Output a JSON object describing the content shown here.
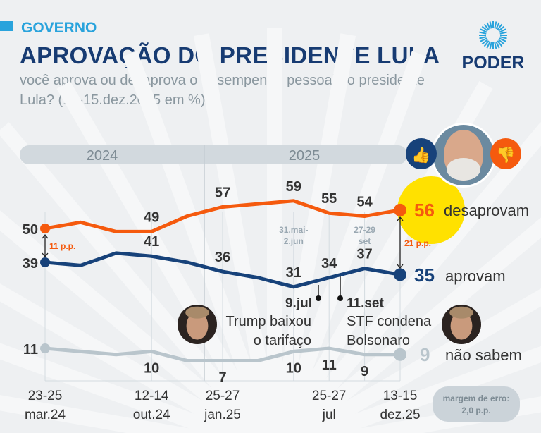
{
  "header": {
    "kicker": "GOVERNO",
    "title": "APROVAÇÃO DO PRESIDENTE LULA",
    "subtitle": "você aprova ou desaprova o desempenho pessoal do presidente Lula? (13-15.dez.2025 em %)",
    "logo": "PODER"
  },
  "colors": {
    "desaprova": "#f55a0e",
    "aprova": "#17427a",
    "nao_sabem": "#b9c5cc",
    "highlight": "#ffe100",
    "accent": "#29a3dc"
  },
  "chart_data": {
    "type": "line",
    "title": "APROVAÇÃO DO PRESIDENTE LULA",
    "years": [
      "2024",
      "2025"
    ],
    "x_tick_labels": [
      {
        "index": 0,
        "line1": "23-25",
        "line2": "mar.24"
      },
      {
        "index": 3,
        "line1": "12-14",
        "line2": "out.24"
      },
      {
        "index": 5,
        "line1": "25-27",
        "line2": "jan.25"
      },
      {
        "index": 8,
        "line1": "25-27",
        "line2": "jul"
      },
      {
        "index": 10,
        "line1": "13-15",
        "line2": "dez.25"
      }
    ],
    "period_notes": [
      {
        "index": 7,
        "line1": "31.mai-",
        "line2": "2.jun"
      },
      {
        "index": 9,
        "line1": "27-29",
        "line2": "set"
      }
    ],
    "series": [
      {
        "key": "desaprova",
        "name": "desaprovam",
        "final": "56",
        "values": [
          50,
          52,
          49,
          49,
          54,
          57,
          58,
          59,
          55,
          54,
          56
        ],
        "labels": [
          "50",
          null,
          null,
          "49",
          null,
          "57",
          null,
          "59",
          "55",
          "54",
          null
        ]
      },
      {
        "key": "aprova",
        "name": "aprovam",
        "final": "35",
        "values": [
          39,
          38,
          42,
          41,
          39,
          36,
          34,
          31,
          34,
          37,
          35
        ],
        "labels": [
          "39",
          null,
          null,
          "41",
          null,
          "36",
          null,
          "31",
          "34",
          "37",
          null
        ]
      },
      {
        "key": "nao_sabem",
        "name": "não sabem",
        "final": "9",
        "values": [
          11,
          10,
          9,
          10,
          7,
          7,
          7,
          10,
          11,
          9,
          9
        ],
        "labels": [
          "11",
          null,
          null,
          "10",
          null,
          "7",
          null,
          "10",
          "11",
          "9",
          null
        ]
      }
    ],
    "gaps": [
      {
        "index": 0,
        "label": "11 p.p."
      },
      {
        "index": 10,
        "label": "21 p.p."
      }
    ],
    "events": [
      {
        "date": "9.jul",
        "line1": "Trump baixou",
        "line2": "o tarifaço"
      },
      {
        "date": "11.set",
        "line1": "STF condena",
        "line2": "Bolsonaro"
      }
    ],
    "margin": {
      "line1": "margem de erro:",
      "line2": "2,0 p.p."
    }
  }
}
